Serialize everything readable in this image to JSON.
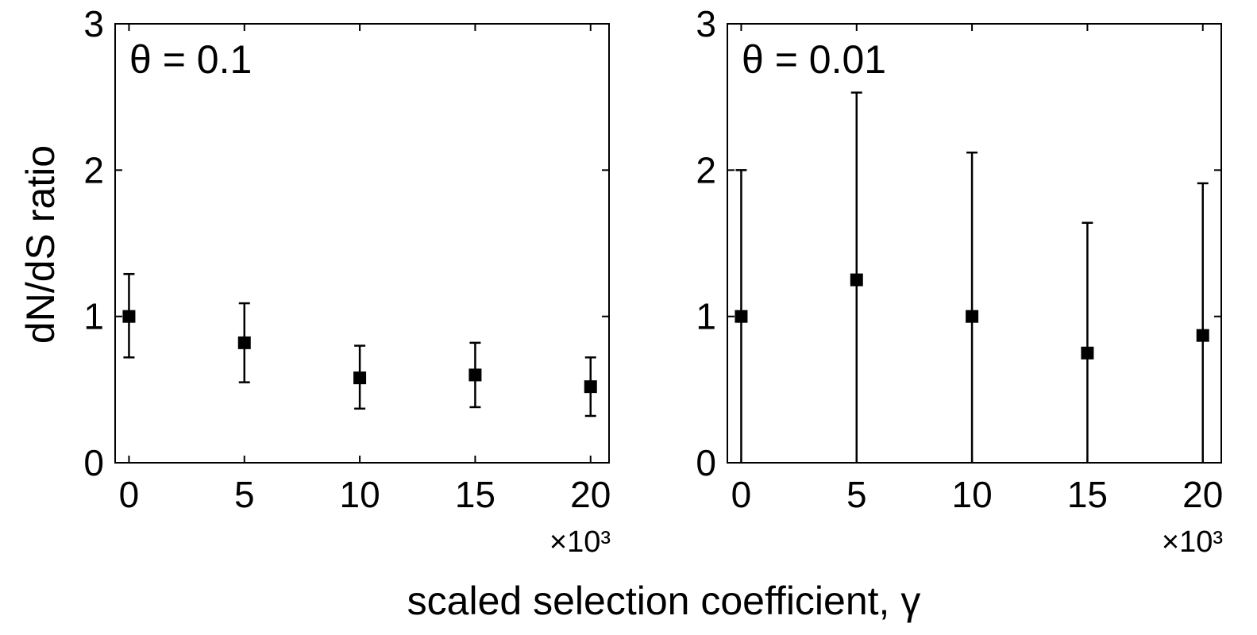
{
  "chart_data": [
    {
      "type": "scatter",
      "panel_label": "θ = 0.1",
      "xlabel": "",
      "ylabel": "dN/dS ratio",
      "x_multiplier": "×10³",
      "x_ticks": [
        0,
        5,
        10,
        15,
        20
      ],
      "y_ticks": [
        0,
        1,
        2,
        3
      ],
      "xlim": [
        -0.6,
        20.8
      ],
      "ylim": [
        0,
        3
      ],
      "points": [
        {
          "x": 0,
          "y": 1.0,
          "ylow": 0.72,
          "yhigh": 1.29
        },
        {
          "x": 5,
          "y": 0.82,
          "ylow": 0.55,
          "yhigh": 1.09
        },
        {
          "x": 10,
          "y": 0.58,
          "ylow": 0.37,
          "yhigh": 0.8
        },
        {
          "x": 15,
          "y": 0.6,
          "ylow": 0.38,
          "yhigh": 0.82
        },
        {
          "x": 20,
          "y": 0.52,
          "ylow": 0.32,
          "yhigh": 0.72
        }
      ]
    },
    {
      "type": "scatter",
      "panel_label": "θ = 0.01",
      "xlabel": "",
      "ylabel": "",
      "x_multiplier": "×10³",
      "x_ticks": [
        0,
        5,
        10,
        15,
        20
      ],
      "y_ticks": [
        0,
        1,
        2,
        3
      ],
      "xlim": [
        -0.6,
        20.8
      ],
      "ylim": [
        0,
        3
      ],
      "points": [
        {
          "x": 0,
          "y": 1.0,
          "ylow": 0,
          "yhigh": 2.0
        },
        {
          "x": 5,
          "y": 1.25,
          "ylow": 0,
          "yhigh": 2.53
        },
        {
          "x": 10,
          "y": 1.0,
          "ylow": 0,
          "yhigh": 2.12
        },
        {
          "x": 15,
          "y": 0.75,
          "ylow": 0,
          "yhigh": 1.64
        },
        {
          "x": 20,
          "y": 0.87,
          "ylow": 0,
          "yhigh": 1.91
        }
      ]
    }
  ],
  "shared_xlabel": "scaled selection coefficient, γ"
}
